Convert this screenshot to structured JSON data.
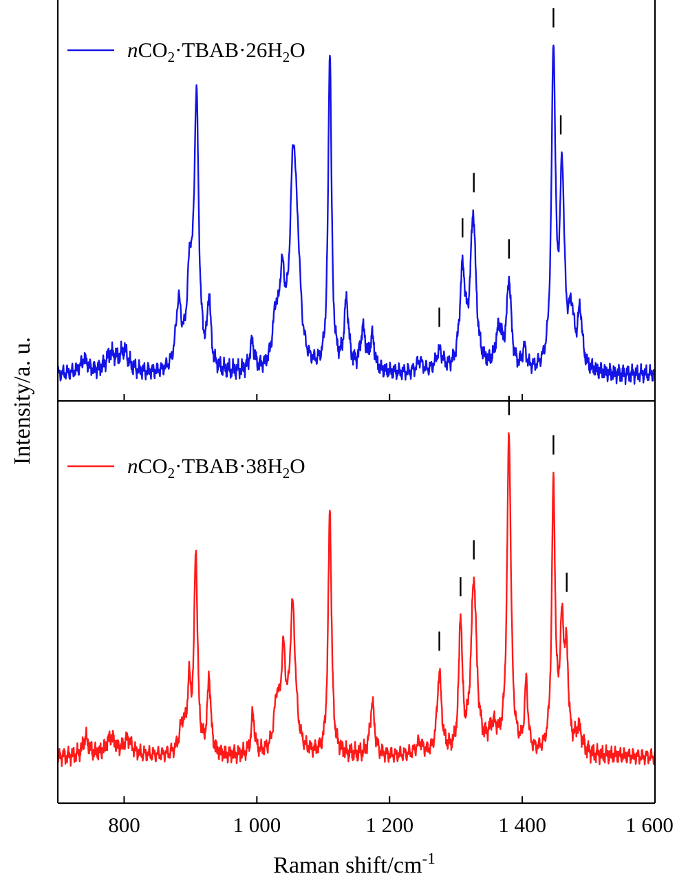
{
  "chart_data": {
    "type": "line",
    "xlabel": "Raman shift/cm",
    "xlabel_sup": "-1",
    "ylabel": "Intensity/a. u.",
    "xlim": [
      700,
      1600
    ],
    "ylim": [
      0,
      1
    ],
    "x_ticks": [
      800,
      1000,
      1200,
      1400,
      1600
    ],
    "x_tick_labels": [
      "800",
      "1 000",
      "1 200",
      "1 400",
      "1 600"
    ],
    "grid": false,
    "legend_position": "top-left",
    "panels": [
      {
        "series": [
          {
            "legend_parts": [
              {
                "t": "n",
                "style": "italic"
              },
              {
                "t": "CO"
              },
              {
                "t": "2",
                "style": "sub"
              },
              {
                "t": "·TBAB·26H"
              },
              {
                "t": "2",
                "style": "sub"
              },
              {
                "t": "O"
              }
            ],
            "color": "#1414e6",
            "baseline": 0.065,
            "peaks": [
              {
                "x": 740,
                "h": 0.035,
                "w": 7
              },
              {
                "x": 780,
                "h": 0.045,
                "w": 10
              },
              {
                "x": 800,
                "h": 0.05,
                "w": 8
              },
              {
                "x": 882,
                "h": 0.16,
                "w": 5
              },
              {
                "x": 899,
                "h": 0.22,
                "w": 5
              },
              {
                "x": 909,
                "h": 0.66,
                "w": 4
              },
              {
                "x": 928,
                "h": 0.17,
                "w": 3
              },
              {
                "x": 993,
                "h": 0.07,
                "w": 4
              },
              {
                "x": 1028,
                "h": 0.11,
                "w": 5
              },
              {
                "x": 1038,
                "h": 0.2,
                "w": 5
              },
              {
                "x": 1055,
                "h": 0.51,
                "w": 6
              },
              {
                "x": 1062,
                "h": 0.15,
                "w": 5
              },
              {
                "x": 1110,
                "h": 0.8,
                "w": 3
              },
              {
                "x": 1135,
                "h": 0.17,
                "w": 4
              },
              {
                "x": 1160,
                "h": 0.1,
                "w": 5
              },
              {
                "x": 1174,
                "h": 0.08,
                "w": 4
              },
              {
                "x": 1245,
                "h": 0.03,
                "w": 5
              },
              {
                "x": 1275,
                "h": 0.05,
                "w": 6
              },
              {
                "x": 1310,
                "h": 0.24,
                "w": 5
              },
              {
                "x": 1326,
                "h": 0.38,
                "w": 5
              },
              {
                "x": 1365,
                "h": 0.1,
                "w": 6
              },
              {
                "x": 1380,
                "h": 0.22,
                "w": 4
              },
              {
                "x": 1403,
                "h": 0.05,
                "w": 4
              },
              {
                "x": 1447,
                "h": 0.79,
                "w": 3.5
              },
              {
                "x": 1460,
                "h": 0.48,
                "w": 4
              },
              {
                "x": 1474,
                "h": 0.13,
                "w": 5
              },
              {
                "x": 1487,
                "h": 0.14,
                "w": 4
              }
            ]
          }
        ],
        "markers": [
          1275,
          1310,
          1327,
          1380,
          1447,
          1458
        ]
      },
      {
        "series": [
          {
            "legend_parts": [
              {
                "t": "n",
                "style": "italic"
              },
              {
                "t": "CO"
              },
              {
                "t": "2",
                "style": "sub"
              },
              {
                "t": "·TBAB·38H"
              },
              {
                "t": "2",
                "style": "sub"
              },
              {
                "t": "O"
              }
            ],
            "color": "#ff1a1a",
            "baseline": 0.115,
            "peaks": [
              {
                "x": 742,
                "h": 0.045,
                "w": 5
              },
              {
                "x": 780,
                "h": 0.045,
                "w": 8
              },
              {
                "x": 805,
                "h": 0.04,
                "w": 8
              },
              {
                "x": 888,
                "h": 0.07,
                "w": 6
              },
              {
                "x": 898,
                "h": 0.15,
                "w": 3
              },
              {
                "x": 908,
                "h": 0.5,
                "w": 3
              },
              {
                "x": 928,
                "h": 0.19,
                "w": 3
              },
              {
                "x": 994,
                "h": 0.1,
                "w": 3
              },
              {
                "x": 1030,
                "h": 0.12,
                "w": 5
              },
              {
                "x": 1040,
                "h": 0.22,
                "w": 4
              },
              {
                "x": 1054,
                "h": 0.36,
                "w": 5
              },
              {
                "x": 1110,
                "h": 0.61,
                "w": 3
              },
              {
                "x": 1174,
                "h": 0.13,
                "w": 4
              },
              {
                "x": 1245,
                "h": 0.03,
                "w": 6
              },
              {
                "x": 1275,
                "h": 0.2,
                "w": 4
              },
              {
                "x": 1307,
                "h": 0.33,
                "w": 3
              },
              {
                "x": 1327,
                "h": 0.43,
                "w": 5
              },
              {
                "x": 1356,
                "h": 0.06,
                "w": 8
              },
              {
                "x": 1380,
                "h": 0.79,
                "w": 3.5
              },
              {
                "x": 1406,
                "h": 0.17,
                "w": 3
              },
              {
                "x": 1447,
                "h": 0.66,
                "w": 3
              },
              {
                "x": 1460,
                "h": 0.3,
                "w": 4
              },
              {
                "x": 1467,
                "h": 0.2,
                "w": 3
              },
              {
                "x": 1485,
                "h": 0.06,
                "w": 6
              }
            ]
          }
        ],
        "markers": [
          1275,
          1307,
          1327,
          1380,
          1447,
          1467
        ]
      }
    ]
  }
}
